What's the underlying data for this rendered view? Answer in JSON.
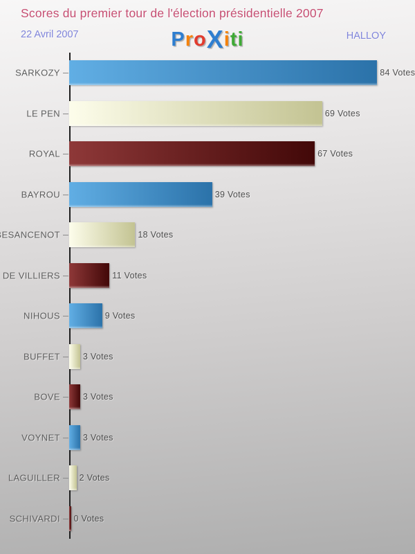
{
  "header": {
    "title": "Scores du premier tour de l'élection présidentielle 2007",
    "date": "22 Avril 2007",
    "place": "HALLOY",
    "logo": {
      "name": "Proxiti",
      "letters": [
        {
          "ch": "P",
          "color": "#2e7ed0",
          "big": false
        },
        {
          "ch": "r",
          "color": "#f5820b",
          "big": false
        },
        {
          "ch": "o",
          "color": "#e23b2e",
          "big": false
        },
        {
          "ch": "X",
          "color": "#2e7ed0",
          "big": true
        },
        {
          "ch": "i",
          "color": "#f5820b",
          "big": false
        },
        {
          "ch": "t",
          "color": "#3faa36",
          "big": false
        },
        {
          "ch": "i",
          "color": "#3faa36",
          "big": false
        }
      ]
    }
  },
  "chart_data": {
    "type": "bar",
    "orientation": "horizontal",
    "title": "Scores du premier tour de l'élection présidentielle 2007",
    "subtitle_left": "22 Avril 2007",
    "subtitle_right": "HALLOY",
    "value_suffix": " Votes",
    "xlim": [
      0,
      94
    ],
    "grid": false,
    "legend": false,
    "categories": [
      "SARKOZY",
      "LE PEN",
      "ROYAL",
      "BAYROU",
      "BESANCENOT",
      "DE VILLIERS",
      "NIHOUS",
      "BUFFET",
      "BOVE",
      "VOYNET",
      "LAGUILLER",
      "SCHIVARDI"
    ],
    "values": [
      84,
      69,
      67,
      39,
      18,
      11,
      9,
      3,
      3,
      3,
      2,
      0
    ],
    "rows": [
      {
        "category": "SARKOZY",
        "votes": 84,
        "label": "84 Votes",
        "color": "blue"
      },
      {
        "category": "LE PEN",
        "votes": 69,
        "label": "69 Votes",
        "color": "cream"
      },
      {
        "category": "ROYAL",
        "votes": 67,
        "label": "67 Votes",
        "color": "red"
      },
      {
        "category": "BAYROU",
        "votes": 39,
        "label": "39 Votes",
        "color": "blue"
      },
      {
        "category": "BESANCENOT",
        "votes": 18,
        "label": "18 Votes",
        "color": "cream"
      },
      {
        "category": "DE VILLIERS",
        "votes": 11,
        "label": "11 Votes",
        "color": "red"
      },
      {
        "category": "NIHOUS",
        "votes": 9,
        "label": "9 Votes",
        "color": "blue"
      },
      {
        "category": "BUFFET",
        "votes": 3,
        "label": "3 Votes",
        "color": "cream"
      },
      {
        "category": "BOVE",
        "votes": 3,
        "label": "3 Votes",
        "color": "red"
      },
      {
        "category": "VOYNET",
        "votes": 3,
        "label": "3 Votes",
        "color": "blue"
      },
      {
        "category": "LAGUILLER",
        "votes": 2,
        "label": "2 Votes",
        "color": "cream"
      },
      {
        "category": "SCHIVARDI",
        "votes": 0,
        "label": "0 Votes",
        "color": "red"
      }
    ],
    "bar_colors": {
      "blue": {
        "from": "#61aee4",
        "to": "#2b72a9"
      },
      "cream": {
        "from": "#fdfdeb",
        "to": "#c3c392"
      },
      "red": {
        "from": "#8e3838",
        "to": "#420808"
      }
    }
  },
  "style": {
    "title_color": "#c64e72",
    "subtitle_color": "#7f84da",
    "label_color": "#5c5c5c",
    "value_color": "#4f4f4f",
    "axis_color": "#1f1f1f",
    "background_top": "#f8f7f7",
    "background_bottom": "#aeaeae"
  }
}
